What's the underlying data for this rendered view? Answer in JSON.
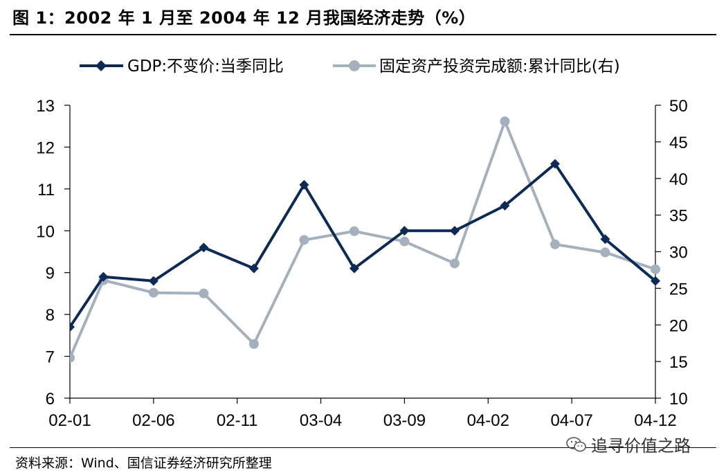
{
  "title": "图 1：2002 年 1 月至 2004 年 12 月我国经济走势（%）",
  "source": "资料来源：Wind、国信证券经济研究所整理",
  "watermark": "追寻价值之路",
  "colors": {
    "gdp": "#0d2a55",
    "fai": "#a5b0bd"
  },
  "chart_data": {
    "type": "line",
    "x_tick_labels": [
      "02-01",
      "02-06",
      "02-11",
      "03-04",
      "03-09",
      "04-02",
      "04-07",
      "04-12"
    ],
    "legend": [
      "GDP:不变价:当季同比",
      "固定资产投资完成额:累计同比(右)"
    ],
    "left_axis": {
      "ylim": [
        6,
        13
      ],
      "ticks": [
        6,
        7,
        8,
        9,
        10,
        11,
        12,
        13
      ]
    },
    "right_axis": {
      "ylim": [
        10,
        50
      ],
      "ticks": [
        10,
        15,
        20,
        25,
        30,
        35,
        40,
        45,
        50
      ]
    },
    "x_range": [
      "2002-01",
      "2004-12"
    ],
    "series": [
      {
        "name": "GDP:不变价:当季同比",
        "axis": "left",
        "marker": "diamond",
        "points": [
          {
            "x": "2002-01",
            "y": 7.7
          },
          {
            "x": "2002-03",
            "y": 8.9
          },
          {
            "x": "2002-06",
            "y": 8.8
          },
          {
            "x": "2002-09",
            "y": 9.6
          },
          {
            "x": "2002-12",
            "y": 9.1
          },
          {
            "x": "2003-03",
            "y": 11.1
          },
          {
            "x": "2003-06",
            "y": 9.1
          },
          {
            "x": "2003-09",
            "y": 10.0
          },
          {
            "x": "2003-12",
            "y": 10.0
          },
          {
            "x": "2004-03",
            "y": 10.6
          },
          {
            "x": "2004-06",
            "y": 11.6
          },
          {
            "x": "2004-09",
            "y": 9.8
          },
          {
            "x": "2004-12",
            "y": 8.8
          }
        ]
      },
      {
        "name": "固定资产投资完成额:累计同比(右)",
        "axis": "right",
        "marker": "circle",
        "points": [
          {
            "x": "2002-01",
            "y": 15.5
          },
          {
            "x": "2002-03",
            "y": 26.1
          },
          {
            "x": "2002-06",
            "y": 24.4
          },
          {
            "x": "2002-09",
            "y": 24.3
          },
          {
            "x": "2002-12",
            "y": 17.4
          },
          {
            "x": "2003-03",
            "y": 31.6
          },
          {
            "x": "2003-06",
            "y": 32.8
          },
          {
            "x": "2003-09",
            "y": 31.4
          },
          {
            "x": "2003-12",
            "y": 28.4
          },
          {
            "x": "2004-03",
            "y": 47.8
          },
          {
            "x": "2004-06",
            "y": 31.0
          },
          {
            "x": "2004-09",
            "y": 29.9
          },
          {
            "x": "2004-12",
            "y": 27.6
          }
        ]
      }
    ]
  }
}
